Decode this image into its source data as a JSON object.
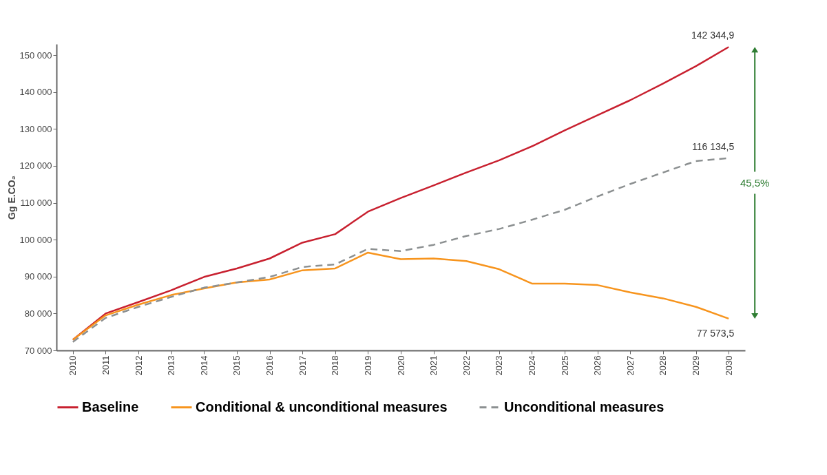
{
  "chart_data": {
    "type": "line",
    "ylabel": "Gg E.CO₂",
    "categories": [
      "2010",
      "2011",
      "2012",
      "2013",
      "2014",
      "2015",
      "2016",
      "2017",
      "2018",
      "2019",
      "2020",
      "2021",
      "2022",
      "2023",
      "2024",
      "2025",
      "2026",
      "2027",
      "2028",
      "2029",
      "2030"
    ],
    "series": [
      {
        "name": "Baseline",
        "color": "#c8202f",
        "line_style": "solid",
        "values": [
          72900,
          80000,
          83100,
          86300,
          89900,
          92200,
          94900,
          99200,
          101500,
          107600,
          111300,
          114700,
          118200,
          121500,
          125300,
          129600,
          133700,
          137800,
          142300,
          147000,
          152200
        ]
      },
      {
        "name": "Conditional & unconditional measures",
        "color": "#f7941d",
        "line_style": "solid",
        "values": [
          72900,
          79500,
          82400,
          85000,
          86800,
          88400,
          89200,
          91700,
          92200,
          96500,
          94700,
          94900,
          94200,
          92000,
          88100,
          88100,
          87700,
          85700,
          84100,
          81800,
          78600
        ]
      },
      {
        "name": "Unconditional measures",
        "color": "#8c9091",
        "line_style": "dashed",
        "values": [
          72300,
          78800,
          81800,
          84500,
          87000,
          88400,
          89900,
          92600,
          93300,
          97500,
          96900,
          98600,
          101000,
          102900,
          105400,
          108100,
          111700,
          115100,
          118200,
          121300,
          122100
        ]
      }
    ],
    "ylim": [
      70000,
      153000
    ],
    "yticks": [
      {
        "value": 70000,
        "label": "70 000"
      },
      {
        "value": 80000,
        "label": "80 000"
      },
      {
        "value": 90000,
        "label": "90 000"
      },
      {
        "value": 100000,
        "label": "100 000"
      },
      {
        "value": 110000,
        "label": "110 000"
      },
      {
        "value": 120000,
        "label": "120 000"
      },
      {
        "value": 130000,
        "label": "130 000"
      },
      {
        "value": 140000,
        "label": "140 000"
      },
      {
        "value": 150000,
        "label": "150 000"
      }
    ],
    "grid": false,
    "legend": "bottom",
    "marker": "none",
    "annotations": [
      {
        "text": "142 344,9",
        "x": "2030",
        "y": 152200
      },
      {
        "text": "116 134,5",
        "x": "2030",
        "y": 122100
      },
      {
        "text": "77 573,5",
        "x": "2030",
        "y": 78600
      },
      "45,5%"
    ]
  }
}
